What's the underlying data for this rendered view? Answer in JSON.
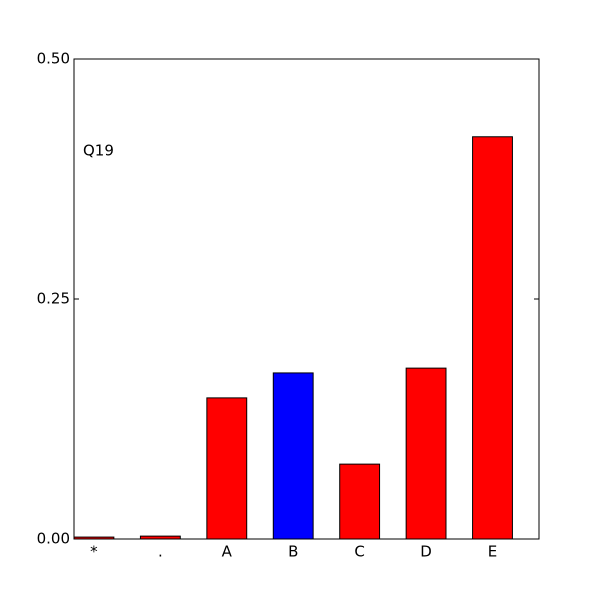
{
  "chart_data": {
    "type": "bar",
    "annotation": "Q19",
    "categories": [
      "*",
      ".",
      "A",
      "B",
      "C",
      "D",
      "E"
    ],
    "values": [
      0.002,
      0.003,
      0.147,
      0.173,
      0.078,
      0.178,
      0.419
    ],
    "colors": [
      "#ff0000",
      "#ff0000",
      "#ff0000",
      "#0000ff",
      "#ff0000",
      "#ff0000",
      "#ff0000"
    ],
    "ylim": [
      0,
      0.5
    ],
    "yticks": [
      {
        "value": 0,
        "label": "0.00"
      },
      0.25,
      {
        "value": 0.5,
        "label": "0.50"
      }
    ],
    "grid": false
  }
}
